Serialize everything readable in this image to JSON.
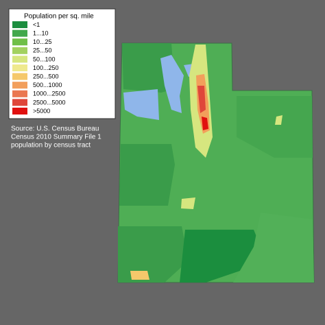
{
  "legend": {
    "title": "Population per sq. mile",
    "entries": [
      {
        "label": "<1",
        "color": "#1b8e3e"
      },
      {
        "label": "1...10",
        "color": "#42a84c"
      },
      {
        "label": "10...25",
        "color": "#6fbf48"
      },
      {
        "label": "25...50",
        "color": "#a2d160"
      },
      {
        "label": "50...100",
        "color": "#d6e67f"
      },
      {
        "label": "100...250",
        "color": "#efe98e"
      },
      {
        "label": "250...500",
        "color": "#f5c86b"
      },
      {
        "label": "500...1000",
        "color": "#f29f5b"
      },
      {
        "label": "1000...2500",
        "color": "#ea7751"
      },
      {
        "label": "2500...5000",
        "color": "#df463a"
      },
      {
        "label": ">5000",
        "color": "#e0100f"
      }
    ]
  },
  "source": {
    "lines": [
      "Source: U.S. Census Bureau",
      "Census 2010 Summary File 1",
      "population by census tract"
    ]
  }
}
